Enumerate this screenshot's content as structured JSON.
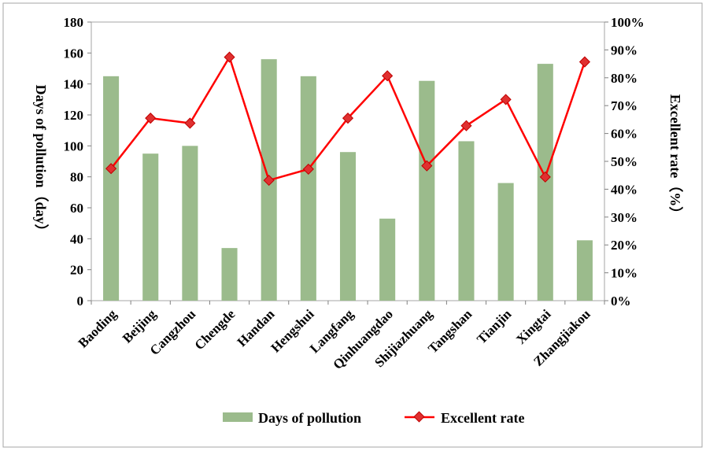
{
  "chart_data": {
    "type": "bar+line",
    "categories": [
      "Baoding",
      "Beijing",
      "Cangzhou",
      "Chengde",
      "Handan",
      "Hengshui",
      "Langfang",
      "Qinhuangdao",
      "Shijiazhuang",
      "Tangshan",
      "Tianjin",
      "Xingtai",
      "Zhangjiakou"
    ],
    "series": [
      {
        "name": "Days of pollution",
        "type": "bar",
        "axis": "left",
        "color": "#9bbb8c",
        "values": [
          145,
          95,
          100,
          34,
          156,
          145,
          96,
          53,
          142,
          103,
          76,
          153,
          39
        ]
      },
      {
        "name": "Excellent rate",
        "type": "line",
        "axis": "right",
        "color": "#ff0000",
        "marker_color": "#e03030",
        "values": [
          47.4,
          65.5,
          63.7,
          87.4,
          43.2,
          47.2,
          65.5,
          80.7,
          48.4,
          62.8,
          72.2,
          44.4,
          85.7
        ]
      }
    ],
    "ylabel": "Days of pollution（day）",
    "ylabel_right": "Excellent rate（%）",
    "ylim": [
      0,
      180
    ],
    "yticks": [
      0,
      20,
      40,
      60,
      80,
      100,
      120,
      140,
      160,
      180
    ],
    "ylim_right": [
      0,
      100
    ],
    "yticks_right": [
      "0%",
      "10%",
      "20%",
      "30%",
      "40%",
      "50%",
      "60%",
      "70%",
      "80%",
      "90%",
      "100%"
    ],
    "grid": false,
    "legend": "bottom"
  }
}
